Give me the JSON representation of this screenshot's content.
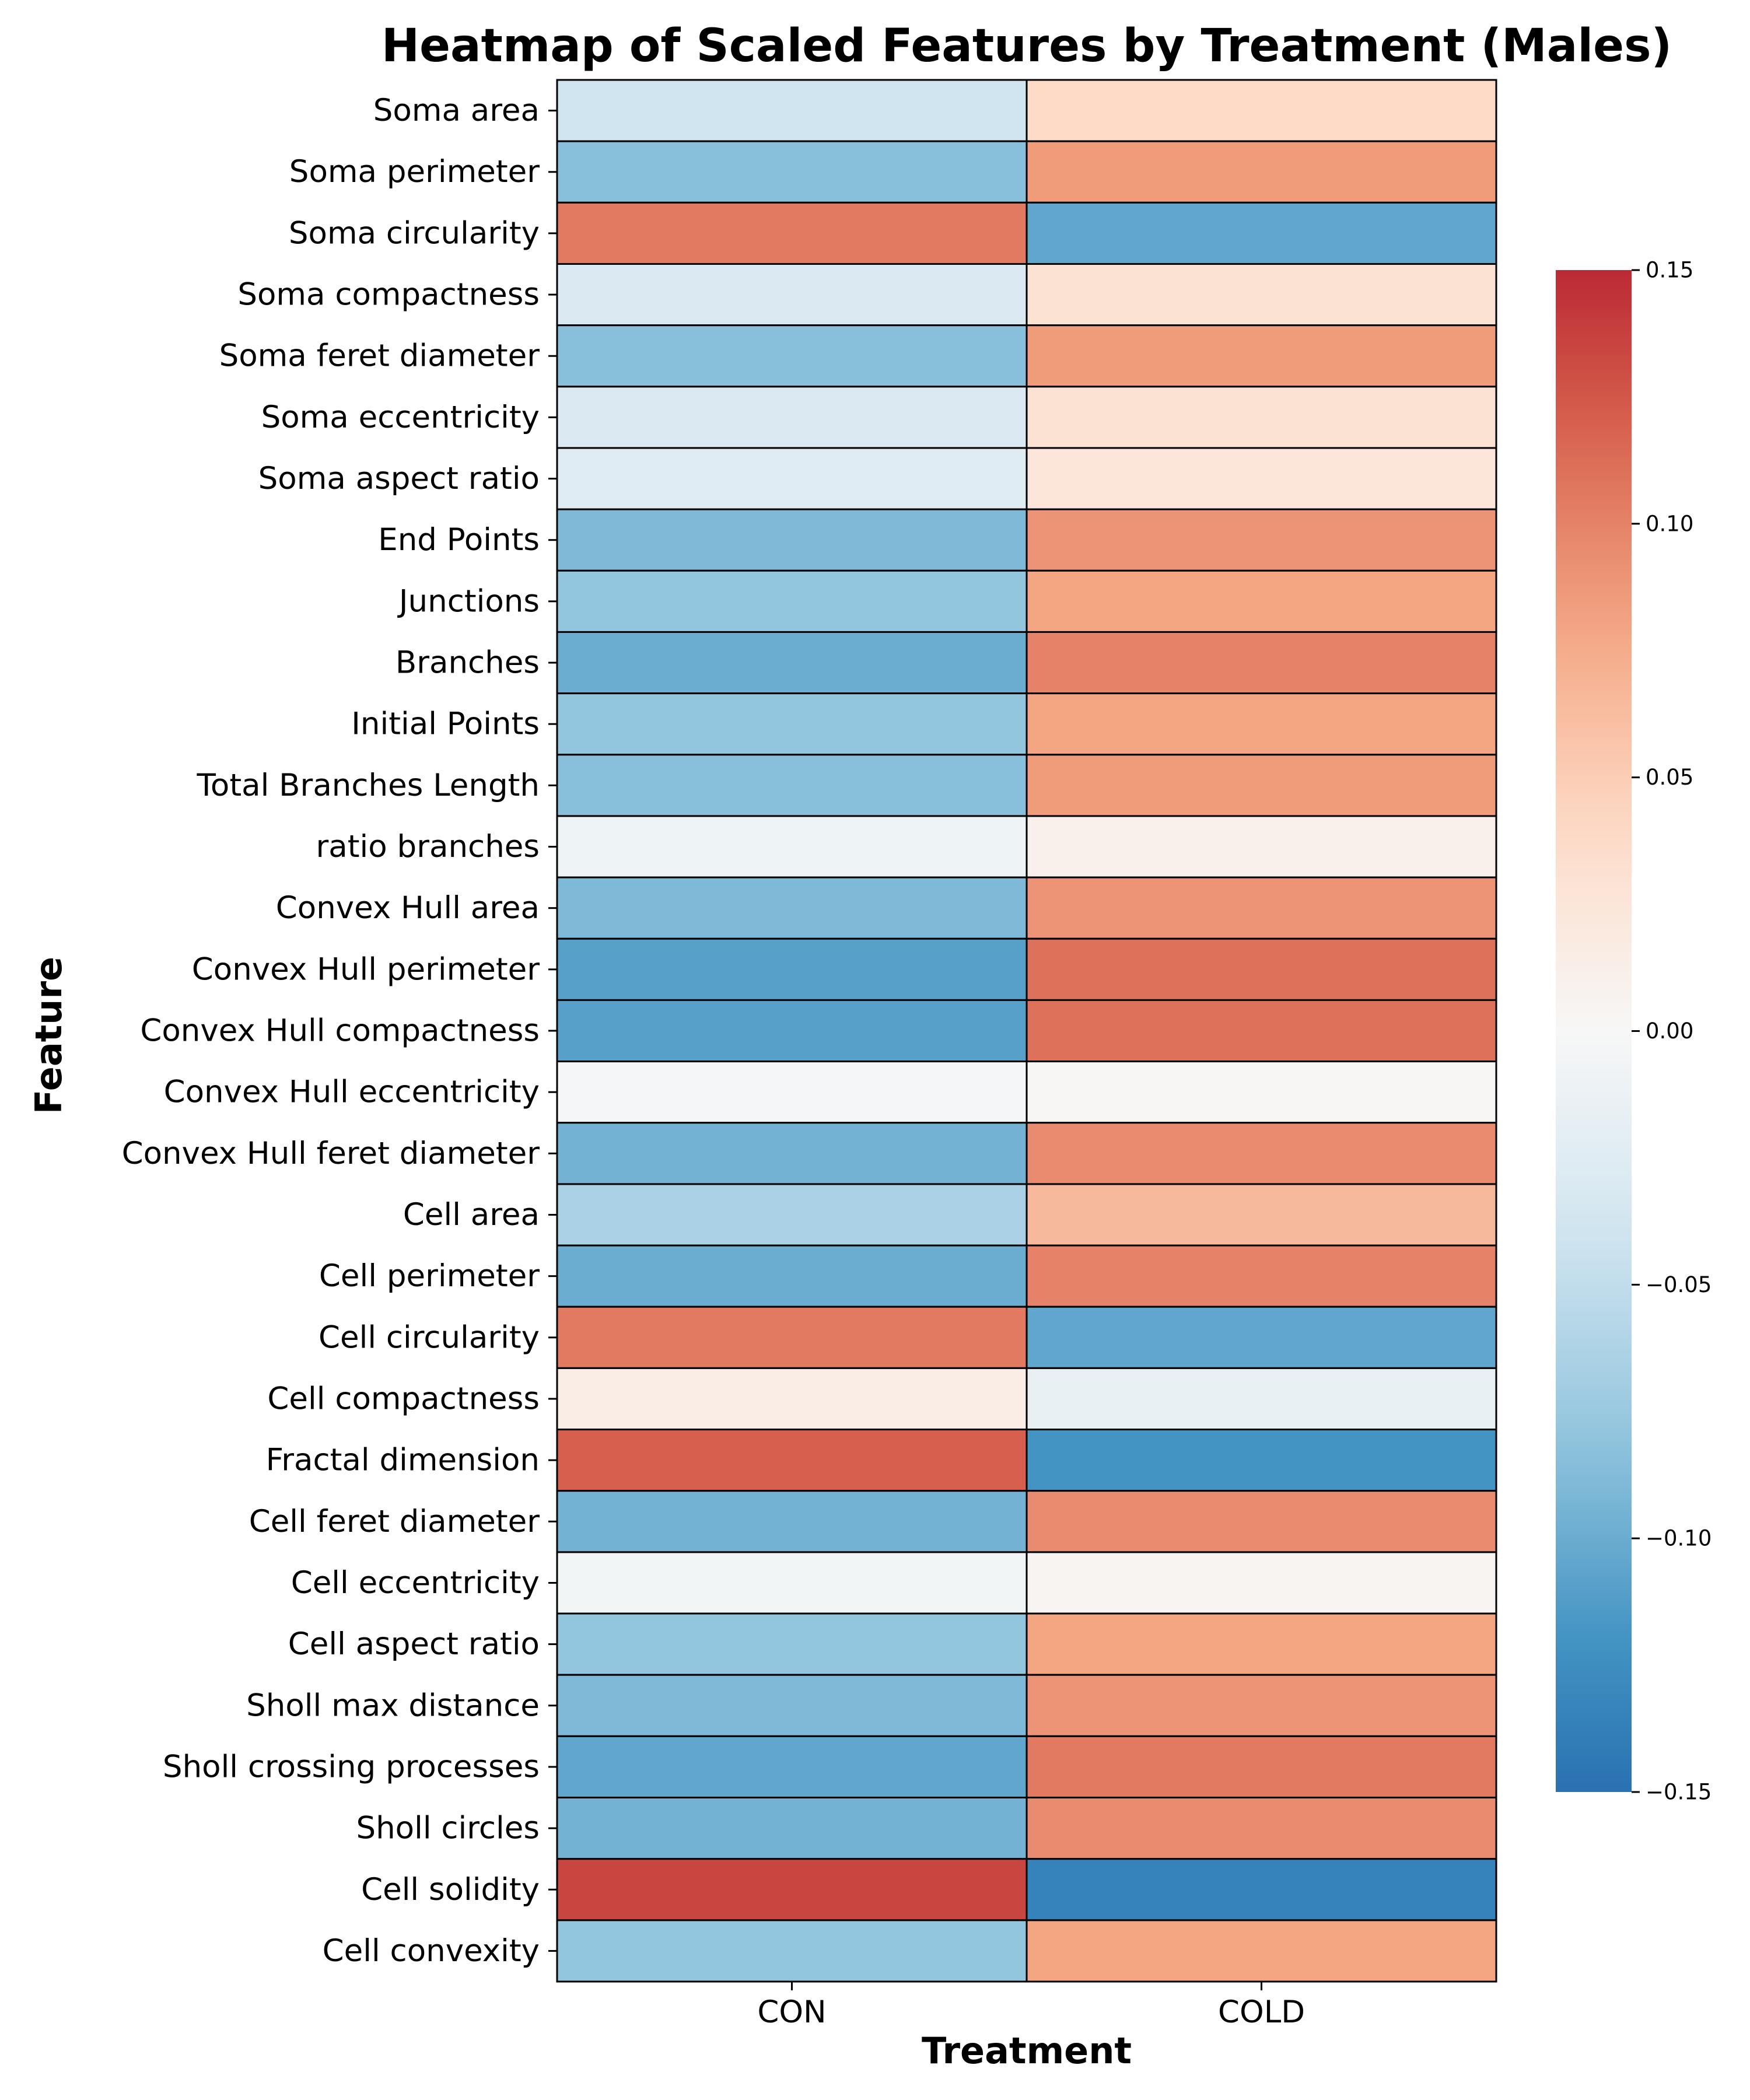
{
  "chart_data": {
    "type": "heatmap",
    "title": "Heatmap of Scaled Features by Treatment (Males)",
    "xlabel": "Treatment",
    "ylabel": "Feature",
    "columns": [
      "CON",
      "COLD"
    ],
    "rows": [
      "Soma area",
      "Soma perimeter",
      "Soma circularity",
      "Soma compactness",
      "Soma feret diameter",
      "Soma eccentricity",
      "Soma aspect ratio",
      "End Points",
      "Junctions",
      "Branches",
      "Initial Points",
      "Total Branches Length",
      "ratio branches",
      "Convex Hull area",
      "Convex Hull perimeter",
      "Convex Hull compactness",
      "Convex Hull eccentricity",
      "Convex Hull feret diameter",
      "Cell area",
      "Cell perimeter",
      "Cell circularity",
      "Cell compactness",
      "Fractal dimension",
      "Cell feret diameter",
      "Cell eccentricity",
      "Cell aspect ratio",
      "Sholl max distance",
      "Sholl crossing processes",
      "Sholl circles",
      "Cell solidity",
      "Cell convexity"
    ],
    "values": [
      [
        -0.04,
        0.04
      ],
      [
        -0.085,
        0.085
      ],
      [
        0.105,
        -0.105
      ],
      [
        -0.03,
        0.03
      ],
      [
        -0.085,
        0.085
      ],
      [
        -0.03,
        0.03
      ],
      [
        -0.025,
        0.025
      ],
      [
        -0.09,
        0.09
      ],
      [
        -0.08,
        0.08
      ],
      [
        -0.1,
        0.1
      ],
      [
        -0.08,
        0.08
      ],
      [
        -0.085,
        0.085
      ],
      [
        -0.01,
        0.01
      ],
      [
        -0.09,
        0.09
      ],
      [
        -0.11,
        0.11
      ],
      [
        -0.11,
        0.11
      ],
      [
        -0.002,
        0.002
      ],
      [
        -0.095,
        0.095
      ],
      [
        -0.065,
        0.065
      ],
      [
        -0.1,
        0.1
      ],
      [
        0.105,
        -0.105
      ],
      [
        0.015,
        -0.015
      ],
      [
        0.12,
        -0.12
      ],
      [
        -0.095,
        0.095
      ],
      [
        -0.005,
        0.005
      ],
      [
        -0.08,
        0.08
      ],
      [
        -0.09,
        0.09
      ],
      [
        -0.105,
        0.105
      ],
      [
        -0.095,
        0.095
      ],
      [
        0.135,
        -0.135
      ],
      [
        -0.08,
        0.08
      ]
    ],
    "vmin": -0.15,
    "vmax": 0.15,
    "colormap": "RdBu_r",
    "colorbar_ticks": [
      0.15,
      0.1,
      0.05,
      0.0,
      -0.05,
      -0.1,
      -0.15
    ],
    "colorbar_tick_labels": [
      "0.15",
      "0.10",
      "0.05",
      "0.00",
      "−0.05",
      "−0.10",
      "−0.15"
    ],
    "legend": "colorbar-right"
  }
}
